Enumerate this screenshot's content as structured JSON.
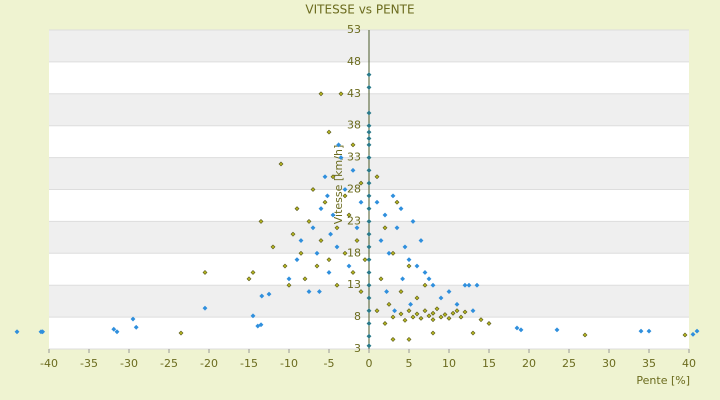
{
  "chart_data": {
    "type": "scatter",
    "title": "VITESSE vs PENTE",
    "x_label": "Pente [%]",
    "y_label": "Vitesse [km/h]",
    "xlim": [
      -40,
      40
    ],
    "ylim": [
      3,
      53
    ],
    "xticks": [
      -40,
      -35,
      -30,
      -25,
      -20,
      -15,
      -10,
      -5,
      0,
      5,
      10,
      15,
      20,
      25,
      30,
      35,
      40
    ],
    "yticks": [
      3,
      8,
      13,
      18,
      23,
      28,
      33,
      38,
      43,
      48,
      53
    ],
    "grid": true,
    "series": [
      {
        "color": "#2f8fdd",
        "x": [
          -44,
          -41,
          -40.8,
          -31.9,
          -31.5,
          -29.5,
          -29.1,
          -20.5,
          -14.5,
          -13.9,
          -13.5,
          -13.4,
          -12.5,
          -10,
          -9,
          -8.5,
          -7.5,
          -7,
          -6.5,
          -6,
          -5.5,
          -5.2,
          -5,
          -4.8,
          -4.5,
          -4,
          -3.5,
          -3,
          -2.5,
          -2,
          -1.5,
          -1,
          -6.2,
          -3.8,
          1,
          1.5,
          2,
          2.5,
          3,
          3.5,
          4,
          4.5,
          5,
          5.5,
          6,
          6.5,
          7,
          7.5,
          8,
          9,
          10,
          11,
          12,
          12.5,
          13,
          13.5,
          18.5,
          19,
          23.5,
          34,
          35,
          40.5,
          41,
          2.2,
          3.2,
          4.2,
          5.2
        ],
        "values": [
          5.7,
          5.7,
          5.7,
          6.1,
          5.7,
          7.7,
          6.4,
          9.4,
          8.2,
          6.6,
          6.8,
          11.3,
          11.6,
          14,
          17,
          20,
          12,
          22,
          18,
          25,
          30,
          27,
          15,
          21,
          24,
          19,
          33,
          28,
          16,
          31,
          22,
          26,
          12,
          35,
          26,
          20,
          24,
          18,
          27,
          22,
          25,
          19,
          17,
          23,
          16,
          20,
          15,
          14,
          13,
          11,
          12,
          10,
          13,
          13,
          9,
          13,
          6.3,
          6,
          6,
          5.8,
          5.8,
          5.3,
          5.8,
          12,
          9,
          14,
          10
        ]
      },
      {
        "color": "#b5b520",
        "x": [
          -23.5,
          -20.5,
          -15,
          -14.5,
          -13.5,
          -12,
          -11,
          -10.5,
          -10,
          -9.5,
          -9,
          -8.5,
          -8,
          -7.5,
          -7,
          -6.5,
          -6,
          -6,
          -5.5,
          -5,
          -5,
          -4.5,
          -4,
          -4,
          -3.5,
          -3,
          -3,
          -2.5,
          -2,
          -2,
          -1.5,
          -1,
          -1,
          -0.5,
          1,
          1,
          1.5,
          2,
          2,
          2.5,
          3,
          3,
          3.5,
          4,
          4,
          4.5,
          5,
          5,
          5.5,
          6,
          6,
          6.5,
          7,
          7,
          7.5,
          8,
          8,
          8.5,
          9,
          9.5,
          10,
          10.5,
          11,
          11.5,
          12,
          13,
          14,
          15,
          27,
          39.5,
          3,
          5,
          8
        ],
        "values": [
          5.5,
          15,
          14,
          15,
          23,
          19,
          32,
          16,
          13,
          21,
          25,
          18,
          14,
          23,
          28,
          16,
          20,
          43,
          26,
          37,
          17,
          30,
          22,
          13,
          43,
          27,
          18,
          24,
          15,
          35,
          20,
          12,
          29,
          17,
          9,
          30,
          14,
          22,
          7,
          10,
          18,
          8,
          26,
          12,
          8.5,
          7.5,
          9,
          16,
          8,
          8.5,
          11,
          7.8,
          9,
          13,
          8.2,
          8.6,
          7.6,
          9.3,
          8,
          8.4,
          7.8,
          8.6,
          9,
          8,
          8.8,
          5.5,
          7.6,
          7,
          5.2,
          5.2,
          4.5,
          4.5,
          5.5
        ]
      },
      {
        "color": "#2a7a8a",
        "x": [
          0,
          0,
          0,
          0,
          0,
          0,
          0,
          0,
          0,
          0,
          0,
          0,
          0,
          0,
          0,
          0,
          0,
          0,
          0,
          0,
          0,
          0,
          0
        ],
        "values": [
          3.5,
          5,
          7,
          9,
          11,
          13,
          15,
          17,
          19,
          21,
          23,
          25,
          27,
          29,
          31,
          33,
          35,
          36,
          37,
          38,
          40,
          44,
          46
        ]
      }
    ]
  }
}
